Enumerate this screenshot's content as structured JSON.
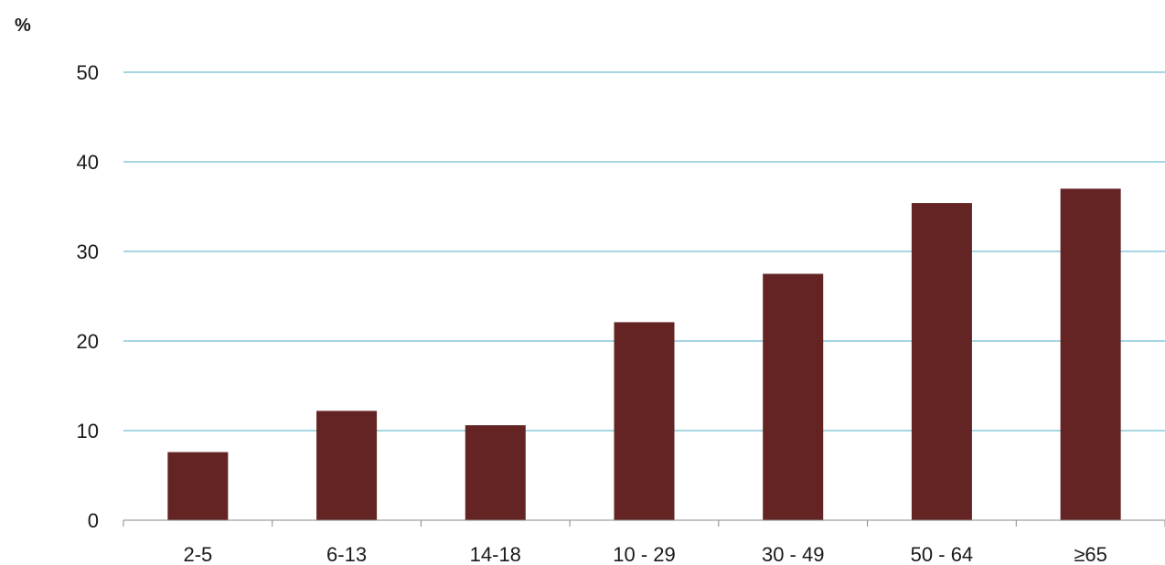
{
  "chart_data": {
    "type": "bar",
    "unit_label": "%",
    "categories": [
      "2-5",
      "6-13",
      "14-18",
      "10 - 29",
      "30 - 49",
      "50 - 64",
      "≥65"
    ],
    "values": [
      7.6,
      12.2,
      10.6,
      22.1,
      27.5,
      35.4,
      37.0
    ],
    "ylim": [
      0,
      50
    ],
    "y_ticks": [
      "0",
      "10",
      "20",
      "30",
      "40",
      "50"
    ],
    "grid": true,
    "colors": {
      "bar": "#632423",
      "grid": "#4BACC6",
      "axis": "#888888"
    }
  }
}
